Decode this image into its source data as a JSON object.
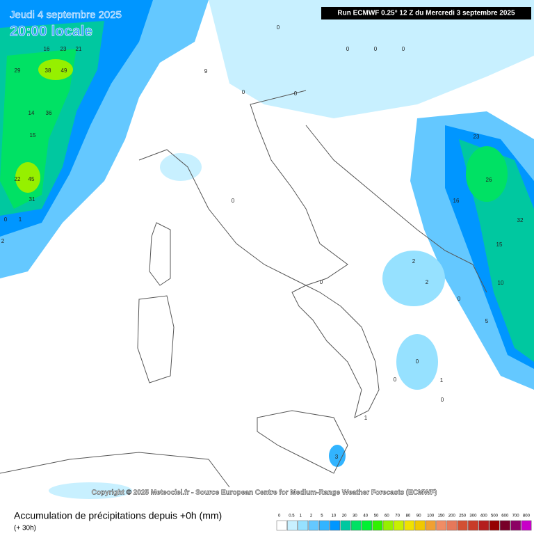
{
  "header": {
    "date": "Jeudi 4 septembre 2025",
    "time": "20:00 locale",
    "run": "Run ECMWF 0.25° 12 Z du Mercredi 3 septembre 2025"
  },
  "copyright": "Copyright © 2025 Meteociel.fr - Source European Centre for Medium-Range Weather Forecasts (ECMWF)",
  "legend": {
    "title": "Accumulation de précipitations depuis +0h (mm)",
    "subtitle": "(+ 30h)",
    "levels": [
      0,
      0.5,
      1,
      2,
      5,
      10,
      20,
      30,
      40,
      50,
      60,
      70,
      80,
      90,
      100,
      150,
      200,
      250,
      300,
      400,
      500,
      600,
      700,
      800
    ],
    "colors": [
      "#ffffff",
      "#c8f0ff",
      "#96e1ff",
      "#64c8ff",
      "#32b4ff",
      "#0096ff",
      "#00c8a0",
      "#00e164",
      "#00f032",
      "#32f000",
      "#96f000",
      "#c8f000",
      "#f0e100",
      "#f0c800",
      "#f0a032",
      "#f08c64",
      "#e6785a",
      "#d25032",
      "#c83c28",
      "#b41e1e",
      "#960000",
      "#780028",
      "#8c0064",
      "#c800c8"
    ]
  },
  "map": {
    "labels": [
      16,
      23,
      21,
      38,
      49,
      29,
      14,
      36,
      15,
      22,
      45,
      31,
      0,
      1,
      2,
      9,
      0,
      0,
      0,
      0,
      23,
      26,
      16,
      32,
      15,
      10,
      5,
      2,
      2,
      0,
      0,
      1,
      1,
      3,
      0,
      0,
      0,
      0,
      0,
      0
    ]
  }
}
